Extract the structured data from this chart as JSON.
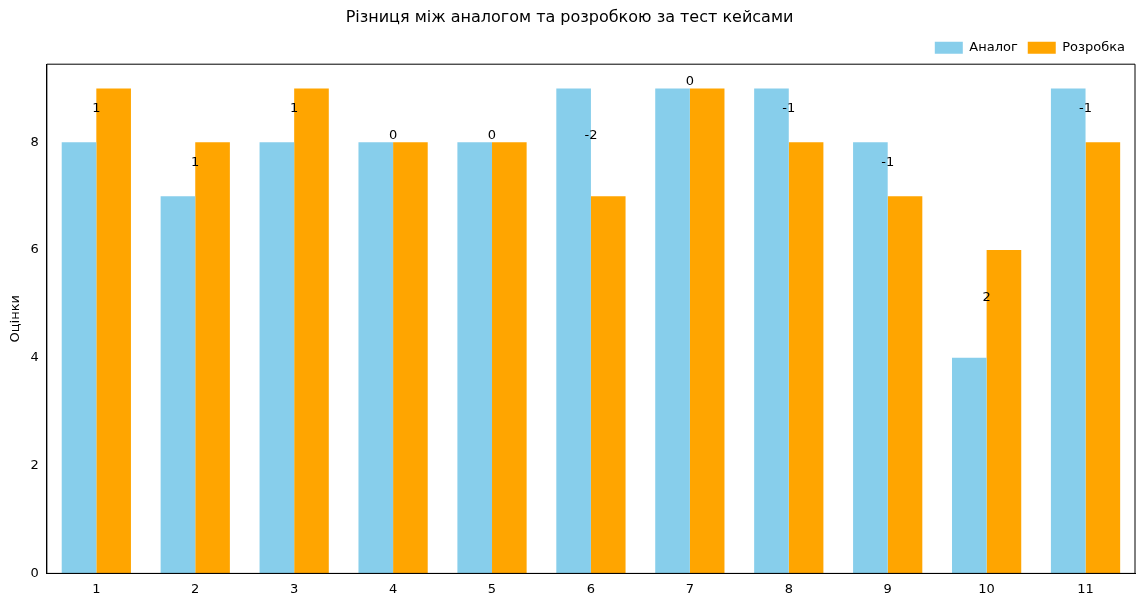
{
  "chart_data": {
    "type": "bar",
    "title": "Різниця між аналогом та розробкою за тест кейсами",
    "ylabel": "Оцінки",
    "categories": [
      "1",
      "2",
      "3",
      "4",
      "5",
      "6",
      "7",
      "8",
      "9",
      "10",
      "11"
    ],
    "series": [
      {
        "name": "Аналог",
        "color": "#87ceeb",
        "values": [
          8,
          7,
          8,
          8,
          8,
          9,
          9,
          9,
          8,
          4,
          9
        ]
      },
      {
        "name": "Розробка",
        "color": "#ffa500",
        "values": [
          9,
          8,
          9,
          8,
          8,
          7,
          9,
          8,
          7,
          6,
          8
        ]
      }
    ],
    "ylim": [
      0,
      9.45
    ],
    "yticks": [
      0,
      2,
      4,
      6,
      8
    ],
    "grid": false,
    "legend": "top right",
    "annotations": [
      {
        "text": "1",
        "x": "1",
        "y": 8.5
      },
      {
        "text": "1",
        "x": "2",
        "y": 7.5
      },
      {
        "text": "1",
        "x": "3",
        "y": 8.5
      },
      {
        "text": "0",
        "x": "4",
        "y": 8
      },
      {
        "text": "0",
        "x": "5",
        "y": 8
      },
      {
        "text": "-2",
        "x": "6",
        "y": 8
      },
      {
        "text": "0",
        "x": "7",
        "y": 9
      },
      {
        "text": "-1",
        "x": "8",
        "y": 8.5
      },
      {
        "text": "-1",
        "x": "9",
        "y": 7.5
      },
      {
        "text": "2",
        "x": "10",
        "y": 5
      },
      {
        "text": "-1",
        "x": "11",
        "y": 8.5
      }
    ]
  }
}
